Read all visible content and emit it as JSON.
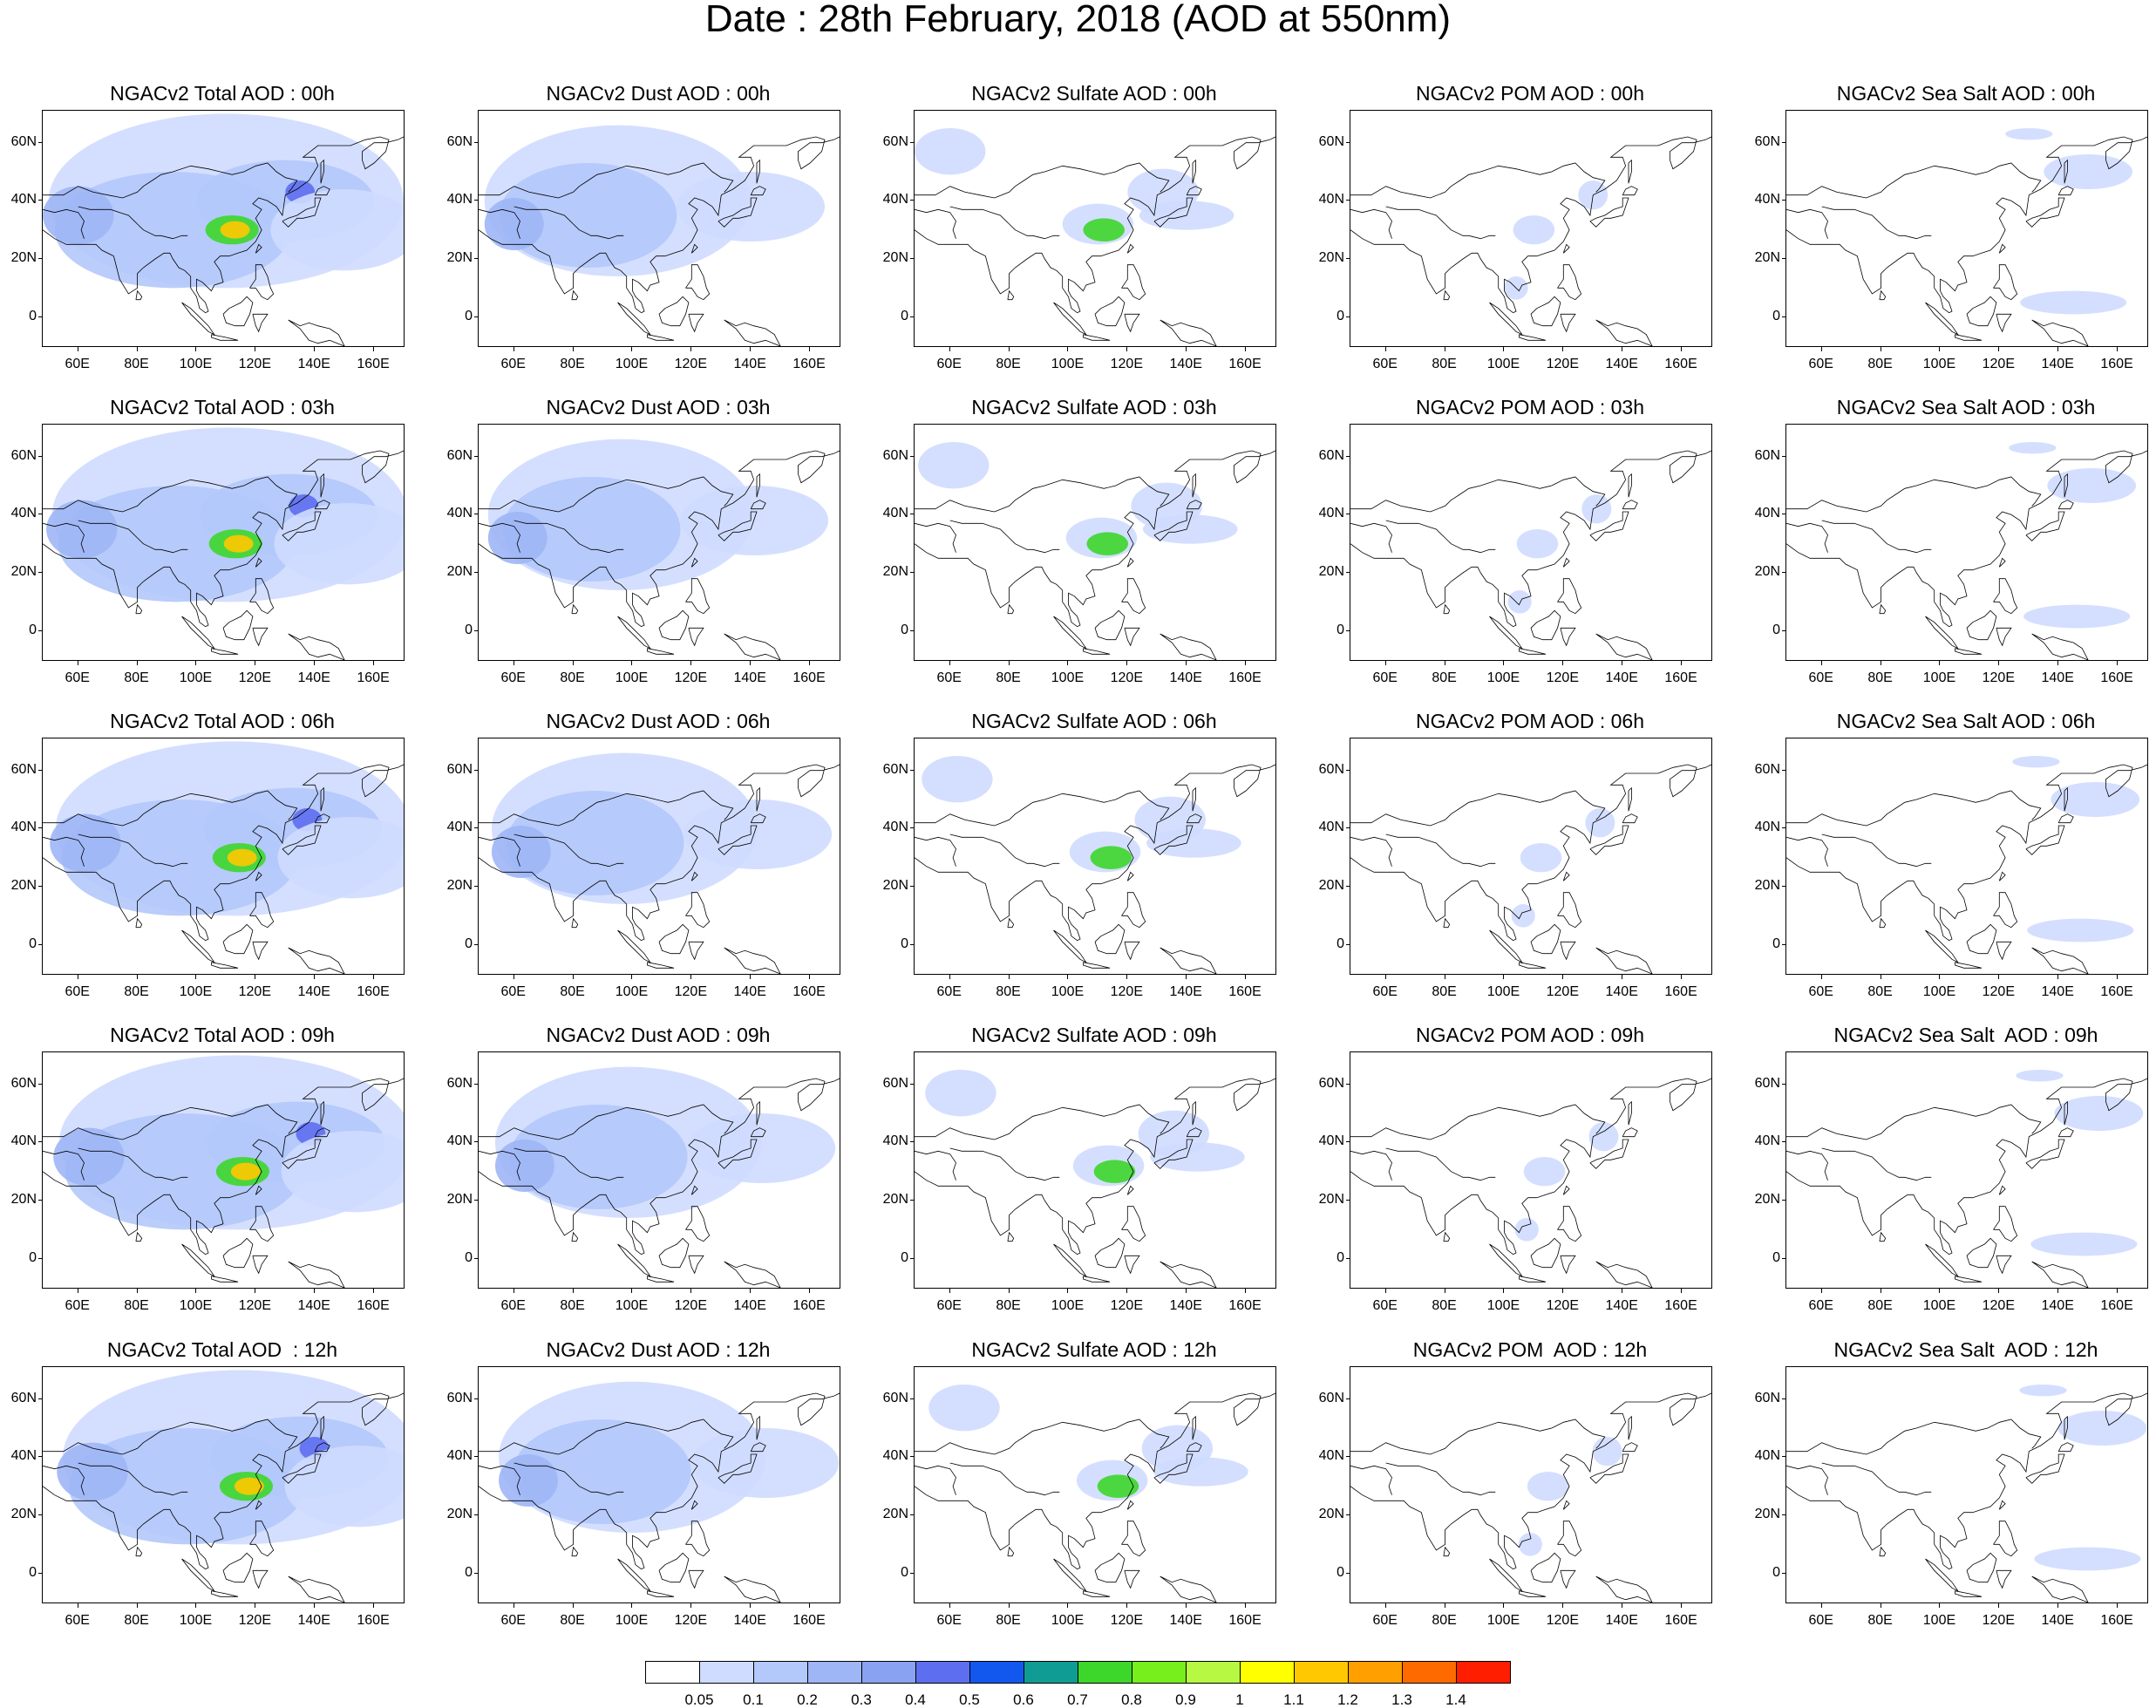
{
  "title": "Date : 28th February, 2018 (AOD at 550nm)",
  "lon_ticks": [
    "60E",
    "80E",
    "100E",
    "120E",
    "140E",
    "160E"
  ],
  "lat_ticks": [
    "60N",
    "40N",
    "20N",
    "0"
  ],
  "panels": [
    [
      "NGACv2 Total AOD : 00h",
      "NGACv2 Dust AOD : 00h",
      "NGACv2 Sulfate AOD : 00h",
      "NGACv2 POM AOD : 00h",
      "NGACv2 Sea Salt AOD : 00h"
    ],
    [
      "NGACv2 Total AOD : 03h",
      "NGACv2 Dust AOD : 03h",
      "NGACv2 Sulfate AOD : 03h",
      "NGACv2 POM AOD : 03h",
      "NGACv2 Sea Salt AOD : 03h"
    ],
    [
      "NGACv2 Total AOD : 06h",
      "NGACv2 Dust AOD : 06h",
      "NGACv2 Sulfate AOD : 06h",
      "NGACv2 POM AOD : 06h",
      "NGACv2 Sea Salt AOD : 06h"
    ],
    [
      "NGACv2 Total AOD : 09h",
      "NGACv2 Dust AOD : 09h",
      "NGACv2 Sulfate AOD : 09h",
      "NGACv2 POM AOD : 09h",
      "NGACv2 Sea Salt  AOD : 09h"
    ],
    [
      "NGACv2 Total AOD  : 12h",
      "NGACv2 Dust AOD : 12h",
      "NGACv2 Sulfate AOD : 12h",
      "NGACv2 POM  AOD : 12h",
      "NGACv2 Sea Salt  AOD : 12h"
    ]
  ],
  "colorbar": {
    "labels": [
      "0.05",
      "0.1",
      "0.2",
      "0.3",
      "0.4",
      "0.5",
      "0.6",
      "0.7",
      "0.8",
      "0.9",
      "1",
      "1.1",
      "1.2",
      "1.3",
      "1.4"
    ],
    "colors": [
      "#ffffff",
      "#cfdcff",
      "#b3c8fb",
      "#9fb6f6",
      "#8aa2f2",
      "#5e6ef0",
      "#1258ee",
      "#0f9c94",
      "#3dd62b",
      "#76ef1d",
      "#b7f843",
      "#ffff00",
      "#ffc800",
      "#ffa000",
      "#ff6a00",
      "#ff1e00"
    ]
  }
}
